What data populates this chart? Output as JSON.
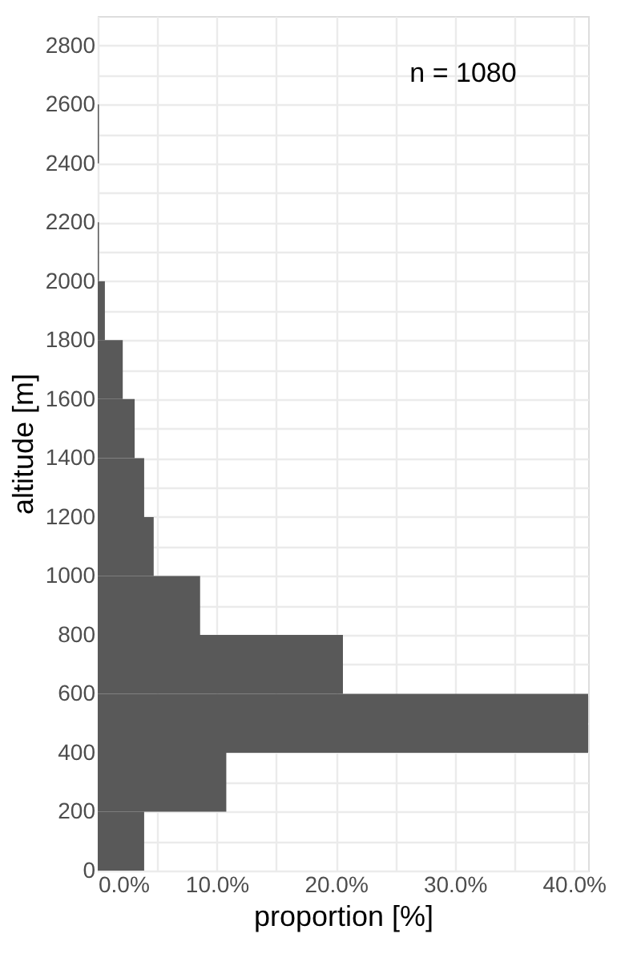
{
  "chart_data": {
    "type": "histogram",
    "orientation": "horizontal",
    "bins": [
      0,
      200,
      400,
      600,
      800,
      1000,
      1200,
      1400,
      1600,
      1800,
      2000,
      2200,
      2400,
      2600
    ],
    "values": [
      3.9,
      10.8,
      41.2,
      20.6,
      8.6,
      4.7,
      3.9,
      3.1,
      2.1,
      0.6,
      0.1,
      0,
      0.1
    ],
    "color": "#595959",
    "xlabel": "proportion [%]",
    "ylabel": "altitude [m]",
    "annotations": [
      "n = 1080"
    ],
    "xlim": [
      0,
      41.2
    ],
    "ylim": [
      0,
      2900
    ],
    "xticks": [
      {
        "value": 0,
        "label": "0.0%"
      },
      {
        "value": 5,
        "label": null
      },
      {
        "value": 10,
        "label": "10.0%"
      },
      {
        "value": 15,
        "label": null
      },
      {
        "value": 20,
        "label": "20.0%"
      },
      {
        "value": 25,
        "label": null
      },
      {
        "value": 30,
        "label": "30.0%"
      },
      {
        "value": 35,
        "label": null
      },
      {
        "value": 40,
        "label": "40.0%"
      }
    ],
    "yticks": [
      0,
      {
        "value": 100,
        "label": null
      },
      200,
      {
        "value": 300,
        "label": null
      },
      400,
      {
        "value": 500,
        "label": null
      },
      600,
      {
        "value": 700,
        "label": null
      },
      800,
      {
        "value": 900,
        "label": null
      },
      1000,
      {
        "value": 1100,
        "label": null
      },
      1200,
      {
        "value": 1300,
        "label": null
      },
      1400,
      {
        "value": 1500,
        "label": null
      },
      1600,
      {
        "value": 1700,
        "label": null
      },
      1800,
      {
        "value": 1900,
        "label": null
      },
      2000,
      {
        "value": 2100,
        "label": null
      },
      2200,
      {
        "value": 2300,
        "label": null
      },
      2400,
      {
        "value": 2500,
        "label": null
      },
      2600,
      {
        "value": 2700,
        "label": null
      },
      2800
    ],
    "grid": true
  }
}
